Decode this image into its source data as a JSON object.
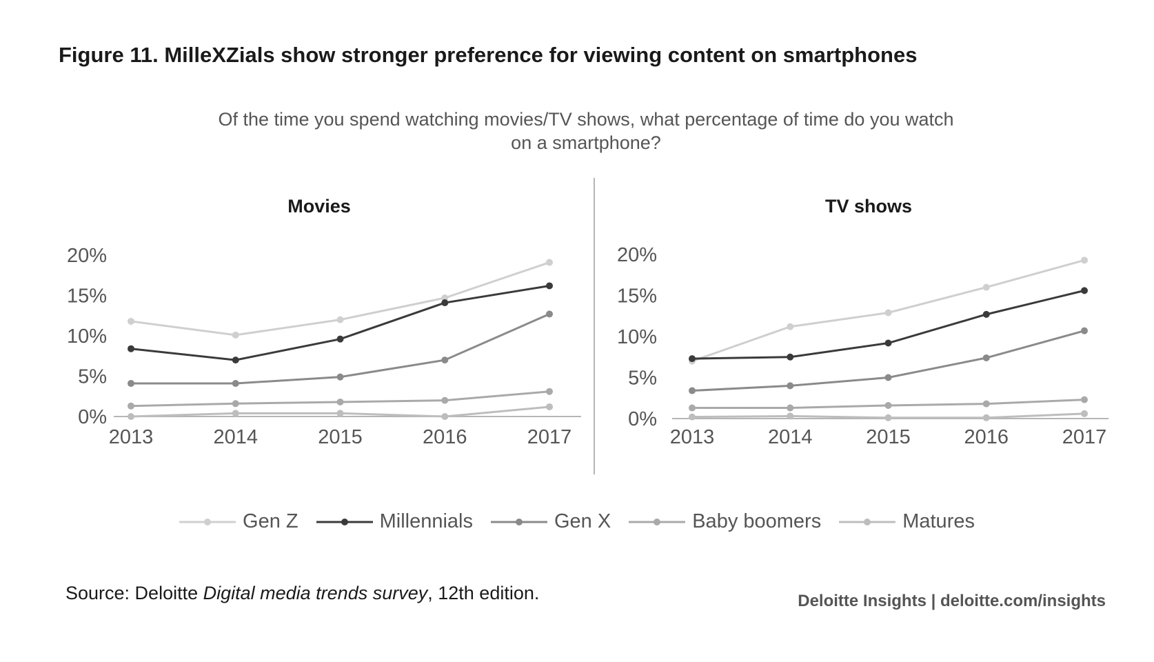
{
  "title": "Figure 11. MilleXZials show stronger preference for viewing content on smartphones",
  "subtitle": "Of the time you spend watching movies/TV shows, what percentage of time do you watch on a smartphone?",
  "source": {
    "prefix": "Source: Deloitte ",
    "italic": "Digital media trends survey",
    "suffix": ", 12th edition."
  },
  "credit": "Deloitte Insights | deloitte.com/insights",
  "colors": {
    "Gen Z": "#cfcfcf",
    "Millennials": "#3a3a3a",
    "Gen X": "#8a8a8a",
    "Baby boomers": "#a9a9a9",
    "Matures": "#bdbdbd",
    "axis": "#b5b5b5"
  },
  "legend": [
    "Gen Z",
    "Millennials",
    "Gen X",
    "Baby boomers",
    "Matures"
  ],
  "chart_data": [
    {
      "type": "line",
      "title": "Movies",
      "x": [
        "2013",
        "2014",
        "2015",
        "2016",
        "2017"
      ],
      "ylim": [
        0,
        20
      ],
      "yticks": [
        "0%",
        "5%",
        "10%",
        "15%",
        "20%"
      ],
      "series": [
        {
          "name": "Gen Z",
          "values": [
            11.8,
            10.1,
            12.0,
            14.7,
            19.1
          ]
        },
        {
          "name": "Millennials",
          "values": [
            8.4,
            7.0,
            9.6,
            14.1,
            16.2
          ]
        },
        {
          "name": "Gen X",
          "values": [
            4.1,
            4.1,
            4.9,
            7.0,
            12.7
          ]
        },
        {
          "name": "Baby boomers",
          "values": [
            1.3,
            1.6,
            1.8,
            2.0,
            3.1
          ]
        },
        {
          "name": "Matures",
          "values": [
            0.0,
            0.4,
            0.4,
            0.0,
            1.2
          ]
        }
      ]
    },
    {
      "type": "line",
      "title": "TV shows",
      "x": [
        "2013",
        "2014",
        "2015",
        "2016",
        "2017"
      ],
      "ylim": [
        0,
        20
      ],
      "yticks": [
        "0%",
        "5%",
        "10%",
        "15%",
        "20%"
      ],
      "series": [
        {
          "name": "Gen Z",
          "values": [
            7.0,
            11.2,
            12.9,
            16.0,
            19.3
          ]
        },
        {
          "name": "Millennials",
          "values": [
            7.3,
            7.5,
            9.2,
            12.7,
            15.6
          ]
        },
        {
          "name": "Gen X",
          "values": [
            3.4,
            4.0,
            5.0,
            7.4,
            10.7
          ]
        },
        {
          "name": "Baby boomers",
          "values": [
            1.3,
            1.3,
            1.6,
            1.8,
            2.3
          ]
        },
        {
          "name": "Matures",
          "values": [
            0.2,
            0.3,
            0.1,
            0.1,
            0.6
          ]
        }
      ]
    }
  ]
}
